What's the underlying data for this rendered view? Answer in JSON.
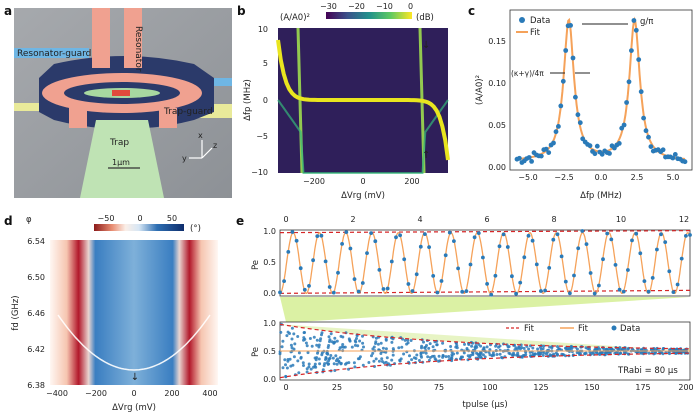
{
  "panels": {
    "a": {
      "letter": "a",
      "labels": {
        "resonator_guard": "Resonator-guard",
        "resonator": "Resonator",
        "trap_guard": "Trap-guard",
        "trap": "Trap",
        "scale": "1μm"
      },
      "axes": {
        "x": "x",
        "y": "y",
        "z": "z"
      }
    },
    "b": {
      "letter": "b",
      "colorbar": {
        "label": "(A/A0)²",
        "unit": "(dB)",
        "ticks": [
          "−30",
          "−20",
          "−10",
          "0"
        ]
      },
      "xlabel": "ΔVrg (mV)",
      "ylabel": "Δfp (MHz)",
      "xticks": [
        "−200",
        "0",
        "200"
      ],
      "yticks": [
        "10",
        "5",
        "0",
        "−5",
        "−10"
      ]
    },
    "c": {
      "letter": "c",
      "legend": {
        "data": "Data",
        "fit": "Fit"
      },
      "annot_g": "g/π",
      "annot_k": "(κ+γ)/4π",
      "xlabel": "Δfp (MHz)",
      "ylabel": "(A/A0)²",
      "xticks": [
        "−5.0",
        "−2.5",
        "0.0",
        "2.5",
        "5.0"
      ],
      "yticks": [
        "0.00",
        "0.05",
        "0.10",
        "0.15"
      ]
    },
    "d": {
      "letter": "d",
      "colorbar": {
        "label": "φ",
        "unit": "(°)",
        "ticks": [
          "−50",
          "0",
          "50"
        ]
      },
      "xlabel": "ΔVrg (mV)",
      "ylabel": "fd (GHz)",
      "xticks": [
        "−400",
        "−200",
        "0",
        "200",
        "400"
      ],
      "yticks": [
        "6.54",
        "6.50",
        "6.46",
        "6.42",
        "6.38"
      ]
    },
    "e": {
      "letter": "e",
      "top_xticks": [
        "0",
        "2",
        "4",
        "6",
        "8",
        "10",
        "12"
      ],
      "ylabel": "Pe",
      "top_yticks": [
        "1.0",
        "0.5",
        "0.0"
      ],
      "bottom_yticks": [
        "1.0",
        "0.5",
        "0.0"
      ],
      "xticks": [
        "0",
        "25",
        "50",
        "75",
        "100",
        "125",
        "150",
        "175",
        "200"
      ],
      "xlabel": "tpulse (μs)",
      "legend": {
        "fit_dashed": "Fit",
        "fit": "Fit",
        "data": "Data"
      },
      "annot": "TRabi = 80 μs"
    }
  },
  "chart_data": [
    {
      "type": "scatter",
      "panel": "c",
      "xlabel": "Δfp (MHz)",
      "ylabel": "(A/A0)²",
      "xlim": [
        -6.5,
        6.5
      ],
      "ylim": [
        0,
        0.19
      ],
      "series": [
        {
          "name": "Data",
          "model": "two Lorentzian peaks",
          "peaks_x": [
            -2.3,
            2.4
          ],
          "peak_y": 0.177,
          "half_width": 0.45,
          "baseline": 0.01
        },
        {
          "name": "Fit",
          "model": "two Lorentzian peaks",
          "peaks_x": [
            -2.3,
            2.4
          ],
          "peak_y": 0.177,
          "half_width": 0.45,
          "baseline": 0.01
        }
      ]
    },
    {
      "type": "line",
      "panel": "e-top",
      "xlim": [
        0,
        12
      ],
      "ylim": [
        0,
        1
      ],
      "rabi_period": 0.77,
      "envelope": [
        0.04,
        0.96
      ]
    },
    {
      "type": "scatter",
      "panel": "e-bottom",
      "xlim": [
        0,
        200
      ],
      "ylim": [
        0,
        1
      ],
      "decay_time": 80,
      "steady_state": 0.5
    }
  ],
  "colors": {
    "data": "#2a7ab8",
    "fit": "#f5a25a",
    "fit_dashed": "#d62728",
    "green": "#cfe98a"
  }
}
